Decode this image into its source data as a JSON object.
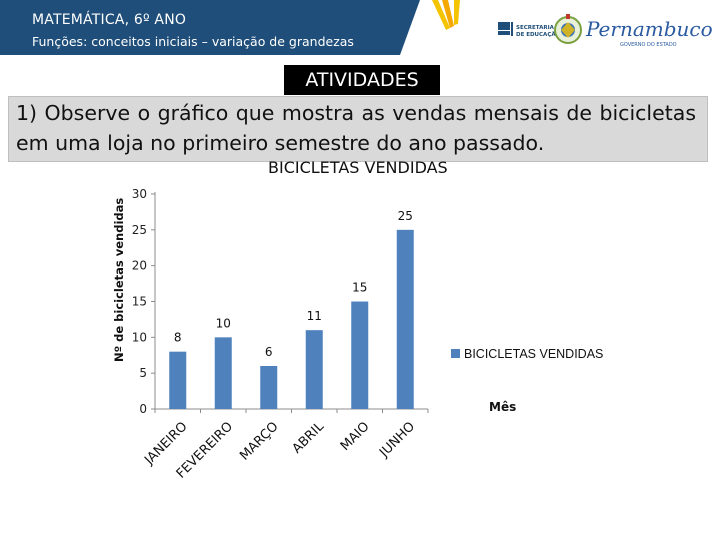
{
  "header": {
    "course": "MATEMÁTICA, 6º ANO",
    "topic": "Funções: conceitos iniciais – variação de grandezas",
    "secretaria_lines": [
      "SECRETARIA",
      "DE EDUCAÇÃO"
    ],
    "state_name": "Pernambuco",
    "state_caption": "GOVERNO DO ESTADO"
  },
  "activities_title": "ATIVIDADES",
  "question": "1) Observe o gráfico que mostra as vendas mensais de bicicletas em uma loja no primeiro semestre do ano passado.",
  "colors": {
    "header_bg": "#1e4e79",
    "bar": "#4f81bd",
    "question_bg": "#d9d9d9"
  },
  "chart_data": {
    "type": "bar",
    "title": "BICICLETAS VENDIDAS",
    "ylabel": "Nº de bicicletas vendidas",
    "xlabel": "Mês",
    "categories": [
      "JANEIRO",
      "FEVEREIRO",
      "MARÇO",
      "ABRIL",
      "MAIO",
      "JUNHO"
    ],
    "series": [
      {
        "name": "BICICLETAS VENDIDAS",
        "values": [
          8,
          10,
          6,
          11,
          15,
          25
        ]
      }
    ],
    "yticks": [
      0,
      5,
      10,
      15,
      20,
      25,
      30
    ],
    "ylim": [
      0,
      30
    ],
    "grid": false,
    "legend_position": "right"
  }
}
